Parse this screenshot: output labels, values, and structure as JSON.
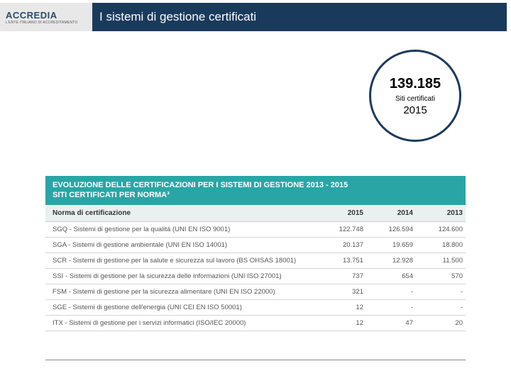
{
  "header": {
    "logo_main": "ACCREDIA",
    "logo_sub": "L'ENTE ITALIANO DI ACCREDITAMENTO",
    "title": "I sistemi di gestione certificati",
    "bar_color": "#1a3a5c"
  },
  "badge": {
    "number": "139.185",
    "label": "Siti certificati",
    "year": "2015",
    "border_color": "#1a3a5c"
  },
  "table": {
    "header_line1": "EVOLUZIONE DELLE CERTIFICAZIONI PER I SISTEMI DI GESTIONE 2013 - 2015",
    "header_line2": "SITI CERTIFICATI PER NORMA³",
    "header_bg": "#2aa5a5",
    "col_bg": "#eaf0f0",
    "columns": {
      "name": "Norma di certificazione",
      "y2015": "2015",
      "y2014": "2014",
      "y2013": "2013"
    },
    "rows": [
      {
        "name": "SGQ - Sistemi di gestione per la qualità (UNI EN ISO 9001)",
        "y2015": "122.748",
        "y2014": "126.594",
        "y2013": "124.600"
      },
      {
        "name": "SGA - Sistemi di gestione ambientale (UNI EN ISO 14001)",
        "y2015": "20.137",
        "y2014": "19.659",
        "y2013": "18.800"
      },
      {
        "name": "SCR - Sistemi di gestione per la salute e sicurezza sul lavoro (BS OHSAS 18001)",
        "y2015": "13.751",
        "y2014": "12.928",
        "y2013": "11.500"
      },
      {
        "name": "SSI - Sistemi di gestione per la sicurezza delle informazioni (UNI ISO 27001)",
        "y2015": "737",
        "y2014": "654",
        "y2013": "570"
      },
      {
        "name": "FSM - Sistemi di gestione per la sicurezza alimentare (UNI EN ISO 22000)",
        "y2015": "321",
        "y2014": "-",
        "y2013": "-"
      },
      {
        "name": "SGE - Sistemi di gestione dell'energia (UNI CEI EN ISO 50001)",
        "y2015": "12",
        "y2014": "-",
        "y2013": "-"
      },
      {
        "name": "ITX - Sistemi di gestione per i servizi informatici (ISO/IEC 20000)",
        "y2015": "12",
        "y2014": "47",
        "y2013": "20"
      }
    ]
  }
}
